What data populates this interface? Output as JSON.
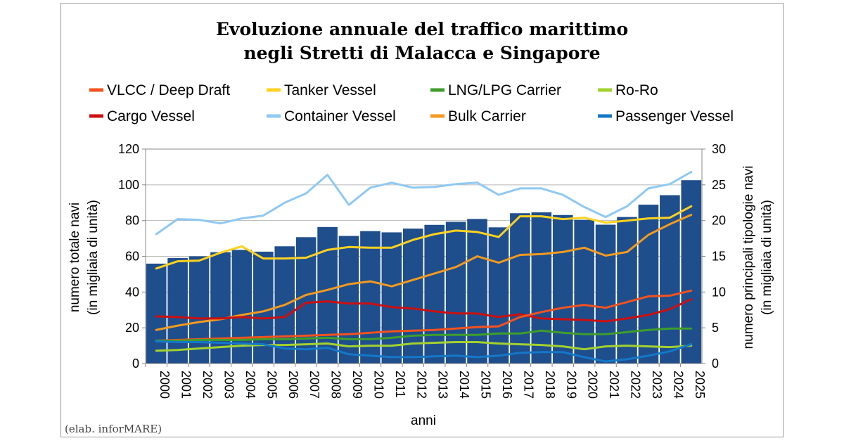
{
  "chart_data": {
    "type": "bar+line",
    "title_lines": [
      "Evoluzione annuale del traffico marittimo",
      "negli Stretti di Malacca e Singapore"
    ],
    "xlabel": "anni",
    "ylabel_left": [
      "numero totale navi",
      "(in migliaia di unità)"
    ],
    "ylabel_right": [
      "numero principali tipologie navi",
      "(in migliaia di unità)"
    ],
    "ylim_left": [
      0,
      120
    ],
    "ylim_right": [
      0,
      30
    ],
    "yticks_left": [
      "0",
      "20",
      "40",
      "60",
      "80",
      "100",
      "120"
    ],
    "yticks_right": [
      "0",
      "5",
      "10",
      "15",
      "20",
      "25",
      "30"
    ],
    "grid": true,
    "categories": [
      "2000",
      "2001",
      "2002",
      "2003",
      "2004",
      "2005",
      "2006",
      "2007",
      "2008",
      "2009",
      "2010",
      "2011",
      "2012",
      "2013",
      "2014",
      "2015",
      "2016",
      "2017",
      "2018",
      "2019",
      "2020",
      "2021",
      "2022",
      "2023",
      "2024",
      "2025"
    ],
    "bars": {
      "name": "Totale navi",
      "color": "#1f4e8c",
      "values": [
        55.9,
        59.0,
        60.0,
        62.3,
        63.6,
        62.6,
        65.6,
        70.7,
        76.4,
        71.4,
        74.1,
        73.4,
        75.5,
        77.6,
        79.3,
        80.9,
        76.2,
        84.1,
        84.6,
        83.1,
        80.4,
        77.7,
        82.0,
        88.9,
        94.2,
        102.6
      ]
    },
    "series": [
      {
        "name": "VLCC / Deep Draft",
        "color": "#f4521e",
        "values": [
          3.2,
          3.3,
          3.4,
          3.5,
          3.6,
          3.7,
          3.8,
          3.9,
          4.0,
          4.1,
          4.3,
          4.5,
          4.6,
          4.7,
          4.9,
          5.1,
          5.2,
          6.5,
          7.2,
          7.8,
          8.2,
          7.8,
          8.6,
          9.4,
          9.5,
          10.2
        ]
      },
      {
        "name": "Tanker Vessel",
        "color": "#ffd21f",
        "values": [
          13.3,
          14.3,
          14.4,
          15.5,
          16.4,
          14.7,
          14.7,
          14.8,
          15.9,
          16.3,
          16.2,
          16.2,
          17.3,
          18.1,
          18.6,
          18.4,
          17.7,
          20.6,
          20.6,
          20.2,
          20.4,
          19.7,
          20.0,
          20.3,
          20.4,
          22.0
        ]
      },
      {
        "name": "LNG/LPG Carrier",
        "color": "#3e9e2b",
        "values": [
          3.2,
          3.2,
          3.3,
          3.3,
          3.3,
          3.4,
          3.4,
          3.5,
          3.6,
          3.4,
          3.4,
          3.6,
          3.9,
          4.0,
          4.0,
          4.0,
          4.2,
          4.2,
          4.6,
          4.3,
          4.1,
          4.1,
          4.4,
          4.7,
          4.9,
          4.9
        ]
      },
      {
        "name": "Ro-Ro",
        "color": "#a3d12e",
        "values": [
          1.8,
          1.9,
          2.1,
          2.3,
          2.5,
          2.6,
          2.6,
          2.7,
          2.8,
          2.4,
          2.5,
          2.5,
          2.8,
          2.9,
          3.0,
          3.0,
          2.8,
          2.7,
          2.6,
          2.4,
          2.0,
          2.4,
          2.5,
          2.4,
          2.3,
          2.5
        ]
      },
      {
        "name": "Cargo Vessel",
        "color": "#cc1010",
        "values": [
          6.6,
          6.5,
          6.3,
          6.3,
          6.5,
          6.3,
          6.5,
          8.5,
          8.7,
          8.4,
          8.4,
          7.9,
          7.7,
          7.3,
          7.0,
          7.0,
          6.5,
          6.9,
          6.3,
          6.2,
          6.1,
          5.9,
          6.3,
          6.8,
          7.6,
          9.0
        ]
      },
      {
        "name": "Container Vessel",
        "color": "#8fc9f2",
        "values": [
          18.1,
          20.2,
          20.1,
          19.6,
          20.3,
          20.7,
          22.5,
          23.8,
          26.4,
          22.2,
          24.6,
          25.3,
          24.6,
          24.7,
          25.1,
          25.3,
          23.6,
          24.5,
          24.5,
          23.6,
          21.9,
          20.5,
          22.0,
          24.5,
          25.1,
          26.8
        ]
      },
      {
        "name": "Bulk Carrier",
        "color": "#f39a1f",
        "values": [
          4.7,
          5.3,
          5.8,
          6.2,
          6.8,
          7.3,
          8.2,
          9.6,
          10.3,
          11.1,
          11.5,
          10.8,
          11.7,
          12.6,
          13.5,
          15.0,
          14.1,
          15.2,
          15.3,
          15.6,
          16.2,
          15.1,
          15.6,
          18.0,
          19.5,
          20.8
        ]
      },
      {
        "name": "Passenger Vessel",
        "color": "#1478c8",
        "values": [
          3.1,
          3.0,
          3.0,
          2.9,
          2.8,
          2.7,
          2.1,
          2.0,
          2.2,
          1.3,
          1.1,
          0.9,
          0.9,
          1.0,
          1.1,
          0.9,
          1.1,
          1.5,
          1.6,
          1.6,
          0.9,
          0.3,
          0.6,
          1.1,
          1.7,
          2.7
        ]
      }
    ],
    "legend_columns": 4
  },
  "credit": "(elab. inforMARE)"
}
